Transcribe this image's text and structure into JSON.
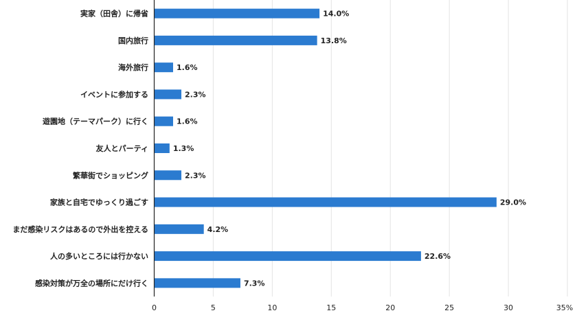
{
  "chart_data": {
    "type": "bar",
    "orientation": "horizontal",
    "categories": [
      "実家（田舎）に帰省",
      "国内旅行",
      "海外旅行",
      "イベントに参加する",
      "遊園地（テーマパーク）に行く",
      "友人とパーティ",
      "繁華街でショッピング",
      "家族と自宅でゆっくり過ごす",
      "まだ感染リスクはあるので外出を控える",
      "人の多いところには行かない",
      "感染対策が万全の場所にだけ行く"
    ],
    "values": [
      14.0,
      13.8,
      1.6,
      2.3,
      1.6,
      1.3,
      2.3,
      29.0,
      4.2,
      22.6,
      7.3
    ],
    "data_labels": [
      "14.0%",
      "13.8%",
      "1.6%",
      "2.3%",
      "1.6%",
      "1.3%",
      "2.3%",
      "29.0%",
      "4.2%",
      "22.6%",
      "7.3%"
    ],
    "xlim": [
      0,
      35
    ],
    "x_ticks": [
      "0",
      "5",
      "10",
      "15",
      "20",
      "25",
      "30",
      "35%"
    ],
    "grid": true,
    "bar_color": "#2b7bd0"
  }
}
